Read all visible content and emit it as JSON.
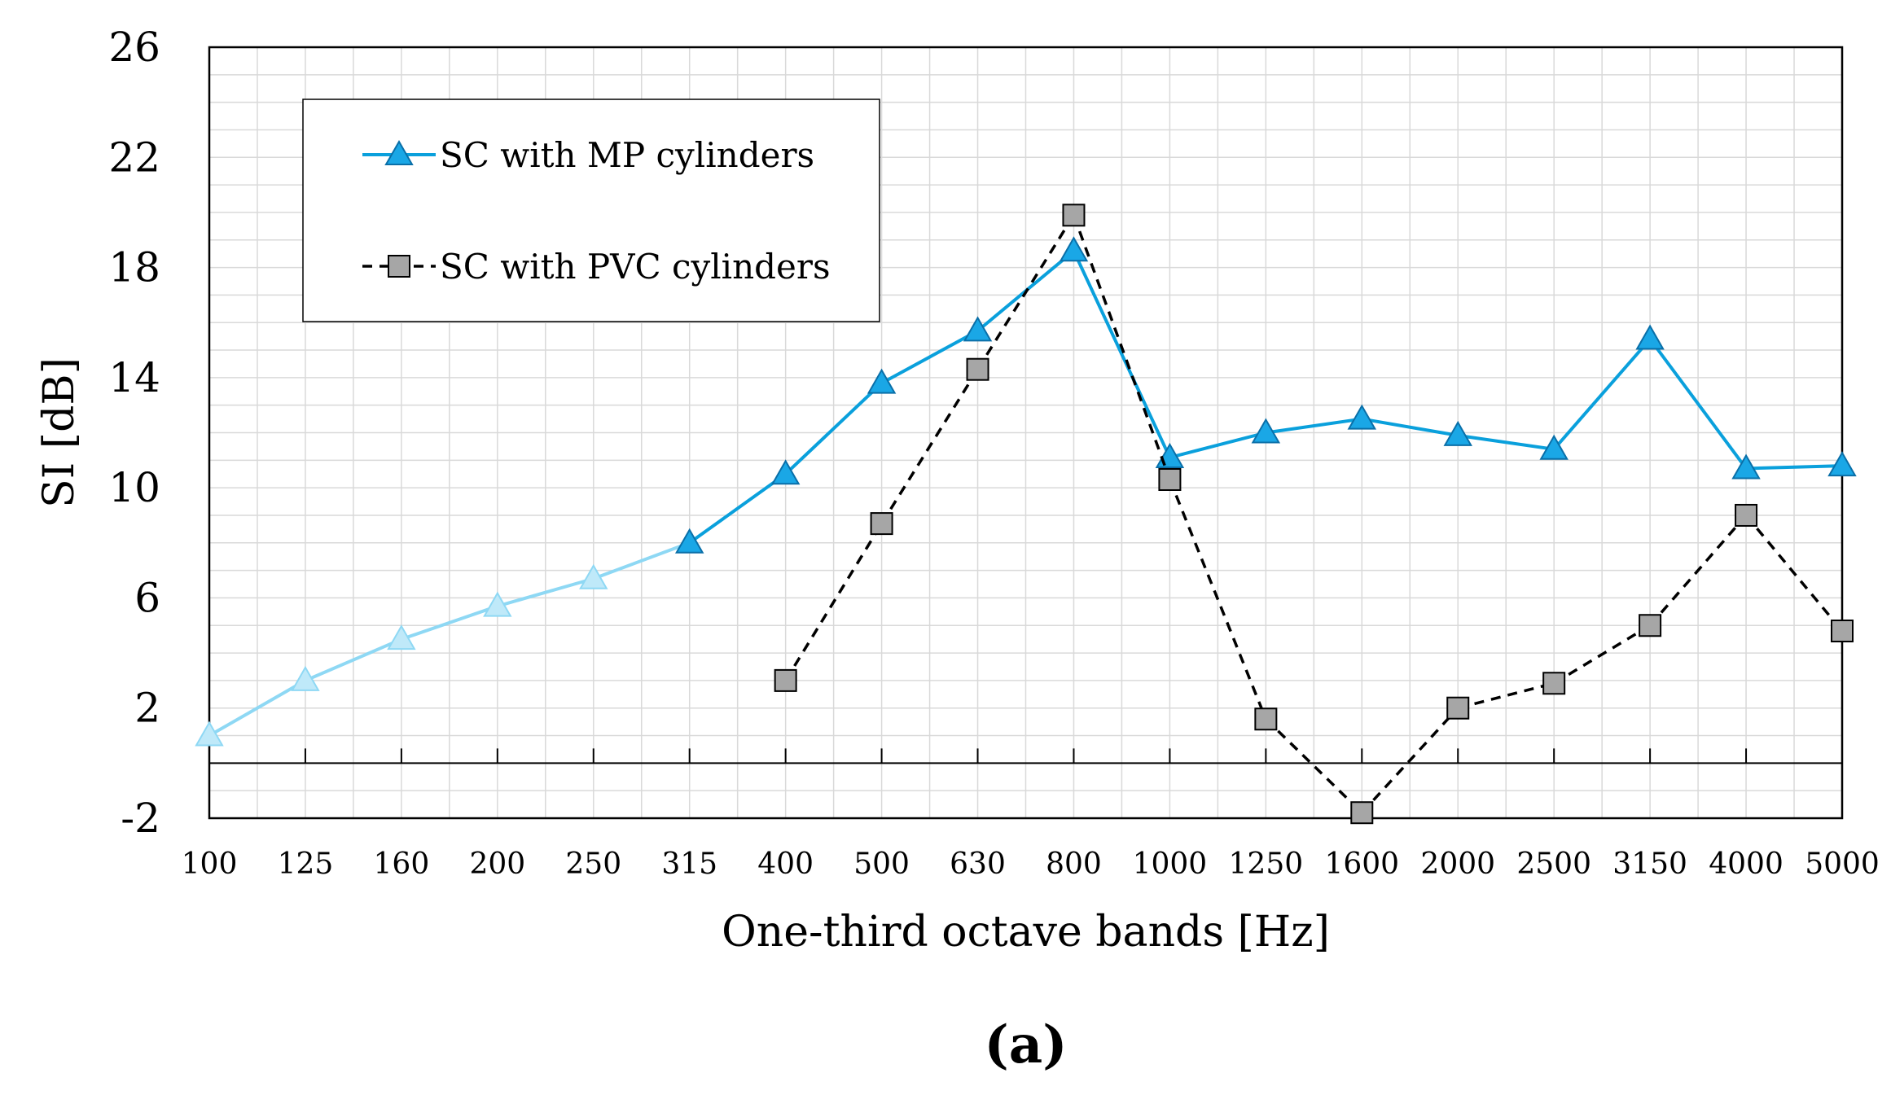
{
  "chart_data": {
    "type": "line",
    "title": "",
    "xlabel": "One-third octave bands [Hz]",
    "ylabel": "SI [dB]",
    "caption": "(a)",
    "ylim": [
      -2,
      26
    ],
    "yticks": [
      -2,
      2,
      6,
      10,
      14,
      18,
      22,
      26
    ],
    "grid": true,
    "legend_position": "top-left",
    "categories": [
      "100",
      "125",
      "160",
      "200",
      "250",
      "315",
      "400",
      "500",
      "630",
      "800",
      "1000",
      "1250",
      "1600",
      "2000",
      "2500",
      "3150",
      "4000",
      "5000"
    ],
    "series": [
      {
        "name": "SC with MP cylinders",
        "marker": "triangle",
        "line_style": "solid",
        "color": "#0aa0dc",
        "faded_color": "#8ed8f4",
        "faded_until_index": 5,
        "values": [
          1.0,
          3.0,
          4.5,
          5.7,
          6.7,
          8.0,
          10.5,
          13.8,
          15.7,
          18.6,
          11.1,
          12.0,
          12.5,
          11.9,
          11.4,
          15.4,
          10.7,
          10.8
        ]
      },
      {
        "name": "SC with PVC cylinders",
        "marker": "square",
        "line_style": "dashed",
        "color": "#000000",
        "marker_fill": "#a6a6a6",
        "values": [
          null,
          null,
          null,
          null,
          null,
          null,
          3.0,
          8.7,
          14.3,
          19.9,
          10.3,
          1.6,
          -1.8,
          2.0,
          2.9,
          5.0,
          9.0,
          4.8
        ]
      }
    ]
  }
}
